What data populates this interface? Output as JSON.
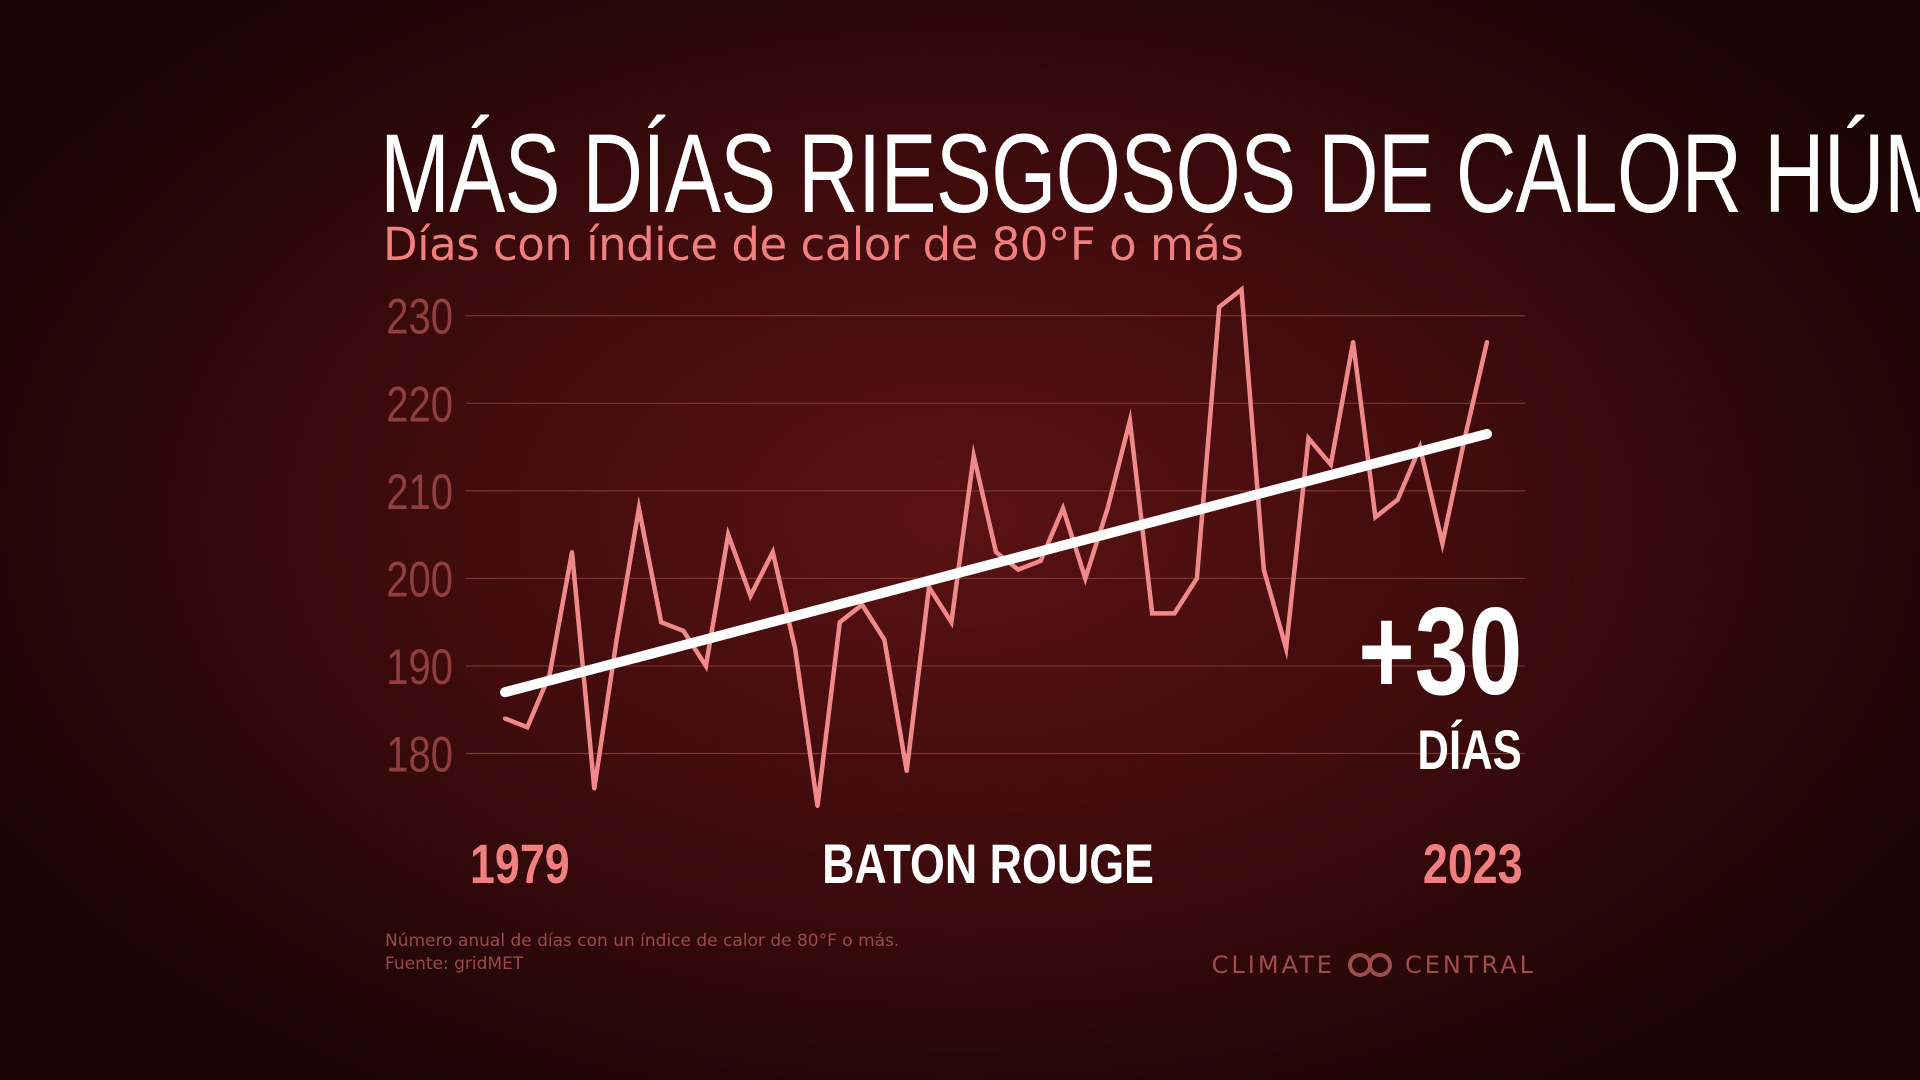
{
  "title": "MÁS DÍAS RIESGOSOS DE CALOR HÚMEDO",
  "subtitle": "Días con índice de calor de 80°F o más",
  "location": "BATON ROUGE",
  "annotation": {
    "value": "+30",
    "unit": "DÍAS"
  },
  "footnote": {
    "description": "Número anual de días con un índice de calor de 80°F o más.",
    "source": "Fuente: gridMET"
  },
  "brand": {
    "left_word": "CLIMATE",
    "right_word": "CENTRAL",
    "logo_icon": "linked-circles-icon"
  },
  "colors": {
    "series": "#f08a8a",
    "trend": "#ffffff",
    "tick_label": "#8f3f3f",
    "gridline": "#7a3434",
    "background": "#3e0b0c"
  },
  "chart_data": {
    "type": "line",
    "title": "MÁS DÍAS RIESGOSOS DE CALOR HÚMEDO",
    "subtitle": "Días con índice de calor de 80°F o más",
    "xlabel": "",
    "ylabel": "",
    "x": [
      1979,
      1980,
      1981,
      1982,
      1983,
      1984,
      1985,
      1986,
      1987,
      1988,
      1989,
      1990,
      1991,
      1992,
      1993,
      1994,
      1995,
      1996,
      1997,
      1998,
      1999,
      2000,
      2001,
      2002,
      2003,
      2004,
      2005,
      2006,
      2007,
      2008,
      2009,
      2010,
      2011,
      2012,
      2013,
      2014,
      2015,
      2016,
      2017,
      2018,
      2019,
      2020,
      2021,
      2022,
      2023
    ],
    "x_tick_labels": [
      "1979",
      "2023"
    ],
    "y_ticks": [
      180,
      190,
      200,
      210,
      220,
      230
    ],
    "ylim": [
      175,
      233
    ],
    "grid": true,
    "legend": "none",
    "series": [
      {
        "values": [
          184,
          183,
          189,
          203,
          176,
          193,
          208,
          195,
          194,
          190,
          205,
          198,
          203,
          192,
          174,
          195,
          197,
          193,
          178,
          199,
          195,
          214,
          203,
          201,
          202,
          208,
          200,
          208,
          218,
          196,
          196,
          200,
          231,
          233,
          201,
          192,
          216,
          213,
          227,
          207,
          209,
          215,
          204,
          216,
          227
        ]
      }
    ],
    "trend": {
      "start": [
        1979,
        187
      ],
      "end": [
        2023,
        216.5
      ]
    },
    "change": "+30",
    "change_unit": "DÍAS"
  }
}
